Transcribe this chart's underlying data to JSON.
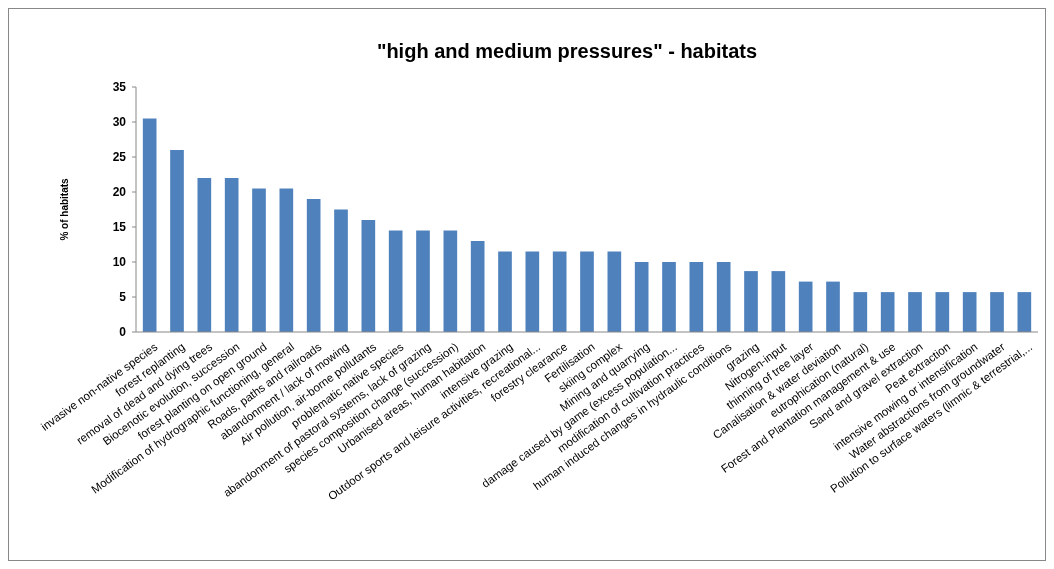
{
  "chart_data": {
    "type": "bar",
    "title": "\"high and medium pressures\" - habitats",
    "ylabel": "% of habitats",
    "categories": [
      "invasive non-native species",
      "forest replanting",
      "removal of dead and dying trees",
      "Biocenotic evolution, succession",
      "forest planting on open ground",
      "Modification of hydrographic functioning, general",
      "Roads, paths and railroads",
      "abandonment / lack of  mowing",
      "Air pollution, air-borne pollutants",
      "problematic native species",
      "abandonment of pastoral systems, lack of grazing",
      "species composition change (succession)",
      "Urbanised areas, human habitation",
      "intensive grazing",
      "Outdoor sports and leisure activities, recreational...",
      "forestry clearance",
      "Fertilisation",
      "skiing complex",
      "Mining and quarrying",
      "damage caused by game (excess population...",
      "modification of cultivation practices",
      "human induced changes in hydraulic conditions",
      "grazing",
      "Nitrogen-input",
      "thinning of tree layer",
      "Canalisation & water deviation",
      "eutrophication (natural)",
      "Forest and Plantation management  & use",
      "Sand and gravel extraction",
      "Peat extraction",
      "intensive mowing or intensification",
      "Water abstractions from groundwater",
      "Pollution to surface waters (limnic & terrestrial,..."
    ],
    "values": [
      30.5,
      26,
      22,
      22,
      20.5,
      20.5,
      19,
      17.5,
      16,
      14.5,
      14.5,
      14.5,
      13,
      11.5,
      11.5,
      11.5,
      11.5,
      11.5,
      10,
      10,
      10,
      10,
      8.7,
      8.7,
      7.2,
      7.2,
      5.7,
      5.7,
      5.7,
      5.7,
      5.7,
      5.7,
      5.7
    ],
    "color": "#4f81bd",
    "ylim": [
      0,
      35
    ],
    "yticks": [
      0,
      5,
      10,
      15,
      20,
      25,
      30,
      35
    ]
  }
}
